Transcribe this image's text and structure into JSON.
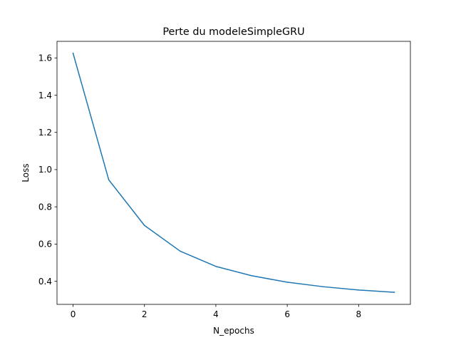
{
  "chart_data": {
    "type": "line",
    "title": "Perte du modeleSimpleGRU",
    "xlabel": "N_epochs",
    "ylabel": "Loss",
    "xlim": [
      -0.45,
      9.45
    ],
    "ylim": [
      0.276,
      1.689
    ],
    "xticks": [
      0,
      2,
      4,
      6,
      8
    ],
    "yticks": [
      0.4,
      0.6,
      0.8,
      1.0,
      1.2,
      1.4,
      1.6
    ],
    "xtick_labels": [
      "0",
      "2",
      "4",
      "6",
      "8"
    ],
    "ytick_labels": [
      "0.4",
      "0.6",
      "0.8",
      "1.0",
      "1.2",
      "1.4",
      "1.6"
    ],
    "grid": false,
    "series": [
      {
        "color": "#1f77b4",
        "x": [
          0,
          1,
          2,
          3,
          4,
          5,
          6,
          7,
          8,
          9
        ],
        "y": [
          1.625,
          0.945,
          0.7,
          0.562,
          0.48,
          0.43,
          0.395,
          0.371,
          0.353,
          0.341
        ]
      }
    ]
  }
}
